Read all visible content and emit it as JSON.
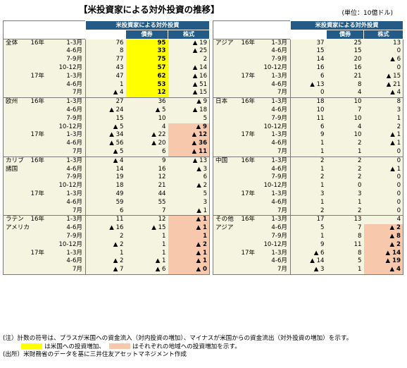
{
  "title": "【米投資家による対外投資の推移】",
  "unit": "(単位：10億ドル)",
  "header": {
    "main": "米投資家による対外投資",
    "bonds": "債券",
    "stocks": "株式"
  },
  "left_groups": [
    {
      "region": [
        "全体",
        ""
      ],
      "rows": [
        {
          "yr": "16年",
          "per": "1-3月",
          "total": "76",
          "bonds": "95",
          "stocks": "▲ 19",
          "hb": "y",
          "hs": ""
        },
        {
          "yr": "",
          "per": "4-6月",
          "total": "8",
          "bonds": "33",
          "stocks": "▲ 25",
          "hb": "y",
          "hs": ""
        },
        {
          "yr": "",
          "per": "7-9月",
          "total": "77",
          "bonds": "75",
          "stocks": "2",
          "hb": "y",
          "hs": ""
        },
        {
          "yr": "",
          "per": "10-12月",
          "total": "43",
          "bonds": "57",
          "stocks": "▲ 14",
          "hb": "y",
          "hs": ""
        },
        {
          "yr": "17年",
          "per": "1-3月",
          "total": "47",
          "bonds": "62",
          "stocks": "▲ 16",
          "hb": "y",
          "hs": ""
        },
        {
          "yr": "",
          "per": "4-6月",
          "total": "1",
          "bonds": "53",
          "stocks": "▲ 51",
          "hb": "y",
          "hs": ""
        },
        {
          "yr": "",
          "per": "7月",
          "total": "▲ 4",
          "bonds": "12",
          "stocks": "▲ 15",
          "hb": "y",
          "hs": ""
        }
      ]
    },
    {
      "region": [
        "欧州",
        ""
      ],
      "rows": [
        {
          "yr": "16年",
          "per": "1-3月",
          "total": "27",
          "bonds": "36",
          "stocks": "▲ 9",
          "hb": "",
          "hs": ""
        },
        {
          "yr": "",
          "per": "4-6月",
          "total": "▲ 24",
          "bonds": "▲ 5",
          "stocks": "▲ 18",
          "hb": "",
          "hs": ""
        },
        {
          "yr": "",
          "per": "7-9月",
          "total": "15",
          "bonds": "10",
          "stocks": "5",
          "hb": "",
          "hs": ""
        },
        {
          "yr": "",
          "per": "10-12月",
          "total": "▲ 5",
          "bonds": "4",
          "stocks": "▲ 9",
          "hb": "",
          "hs": "o"
        },
        {
          "yr": "17年",
          "per": "1-3月",
          "total": "▲ 34",
          "bonds": "▲ 22",
          "stocks": "▲ 12",
          "hb": "",
          "hs": "o"
        },
        {
          "yr": "",
          "per": "4-6月",
          "total": "▲ 56",
          "bonds": "▲ 20",
          "stocks": "▲ 36",
          "hb": "",
          "hs": "o"
        },
        {
          "yr": "",
          "per": "7月",
          "total": "▲ 5",
          "bonds": "6",
          "stocks": "▲ 11",
          "hb": "",
          "hs": "o"
        }
      ]
    },
    {
      "region": [
        "カリブ",
        "諸国"
      ],
      "rows": [
        {
          "yr": "16年",
          "per": "1-3月",
          "total": "▲ 4",
          "bonds": "9",
          "stocks": "▲ 13",
          "hb": "",
          "hs": ""
        },
        {
          "yr": "",
          "per": "4-6月",
          "total": "14",
          "bonds": "16",
          "stocks": "▲ 3",
          "hb": "",
          "hs": ""
        },
        {
          "yr": "",
          "per": "7-9月",
          "total": "19",
          "bonds": "12",
          "stocks": "6",
          "hb": "",
          "hs": ""
        },
        {
          "yr": "",
          "per": "10-12月",
          "total": "18",
          "bonds": "21",
          "stocks": "▲ 2",
          "hb": "",
          "hs": ""
        },
        {
          "yr": "17年",
          "per": "1-3月",
          "total": "49",
          "bonds": "44",
          "stocks": "5",
          "hb": "",
          "hs": ""
        },
        {
          "yr": "",
          "per": "4-6月",
          "total": "59",
          "bonds": "55",
          "stocks": "3",
          "hb": "",
          "hs": ""
        },
        {
          "yr": "",
          "per": "7月",
          "total": "6",
          "bonds": "7",
          "stocks": "▲ 1",
          "hb": "",
          "hs": ""
        }
      ]
    },
    {
      "region": [
        "ラテン",
        "アメリカ"
      ],
      "rows": [
        {
          "yr": "16年",
          "per": "1-3月",
          "total": "11",
          "bonds": "12",
          "stocks": "▲ 1",
          "hb": "",
          "hs": "o"
        },
        {
          "yr": "",
          "per": "4-6月",
          "total": "▲ 16",
          "bonds": "▲ 15",
          "stocks": "▲ 1",
          "hb": "",
          "hs": "o"
        },
        {
          "yr": "",
          "per": "7-9月",
          "total": "2",
          "bonds": "1",
          "stocks": "1",
          "hb": "",
          "hs": "o"
        },
        {
          "yr": "",
          "per": "10-12月",
          "total": "▲ 2",
          "bonds": "1",
          "stocks": "▲ 2",
          "hb": "",
          "hs": "o"
        },
        {
          "yr": "17年",
          "per": "1-3月",
          "total": "1",
          "bonds": "1",
          "stocks": "▲ 1",
          "hb": "",
          "hs": "o"
        },
        {
          "yr": "",
          "per": "4-6月",
          "total": "▲ 2",
          "bonds": "▲ 1",
          "stocks": "▲ 1",
          "hb": "",
          "hs": "o"
        },
        {
          "yr": "",
          "per": "7月",
          "total": "▲ 7",
          "bonds": "▲ 6",
          "stocks": "▲ 0",
          "hb": "",
          "hs": "o"
        }
      ]
    }
  ],
  "right_groups": [
    {
      "region": [
        "アジア",
        ""
      ],
      "rows": [
        {
          "yr": "16年",
          "per": "1-3月",
          "total": "37",
          "bonds": "25",
          "stocks": "13",
          "hb": "",
          "hs": ""
        },
        {
          "yr": "",
          "per": "4-6月",
          "total": "15",
          "bonds": "15",
          "stocks": "0",
          "hb": "",
          "hs": ""
        },
        {
          "yr": "",
          "per": "7-9月",
          "total": "14",
          "bonds": "20",
          "stocks": "▲ 6",
          "hb": "",
          "hs": ""
        },
        {
          "yr": "",
          "per": "10-12月",
          "total": "16",
          "bonds": "16",
          "stocks": "0",
          "hb": "",
          "hs": ""
        },
        {
          "yr": "17年",
          "per": "1-3月",
          "total": "6",
          "bonds": "21",
          "stocks": "▲ 15",
          "hb": "",
          "hs": ""
        },
        {
          "yr": "",
          "per": "4-6月",
          "total": "▲ 13",
          "bonds": "8",
          "stocks": "▲ 21",
          "hb": "",
          "hs": ""
        },
        {
          "yr": "",
          "per": "7月",
          "total": "0",
          "bonds": "4",
          "stocks": "▲ 4",
          "hb": "",
          "hs": ""
        }
      ]
    },
    {
      "region": [
        "日本",
        ""
      ],
      "rows": [
        {
          "yr": "16年",
          "per": "1-3月",
          "total": "18",
          "bonds": "10",
          "stocks": "8",
          "hb": "",
          "hs": ""
        },
        {
          "yr": "",
          "per": "4-6月",
          "total": "10",
          "bonds": "7",
          "stocks": "3",
          "hb": "",
          "hs": ""
        },
        {
          "yr": "",
          "per": "7-9月",
          "total": "11",
          "bonds": "10",
          "stocks": "1",
          "hb": "",
          "hs": ""
        },
        {
          "yr": "",
          "per": "10-12月",
          "total": "6",
          "bonds": "4",
          "stocks": "2",
          "hb": "",
          "hs": ""
        },
        {
          "yr": "17年",
          "per": "1-3月",
          "total": "9",
          "bonds": "10",
          "stocks": "▲ 1",
          "hb": "",
          "hs": ""
        },
        {
          "yr": "",
          "per": "4-6月",
          "total": "1",
          "bonds": "2",
          "stocks": "▲ 1",
          "hb": "",
          "hs": ""
        },
        {
          "yr": "",
          "per": "7月",
          "total": "1",
          "bonds": "1",
          "stocks": "0",
          "hb": "",
          "hs": ""
        }
      ]
    },
    {
      "region": [
        "中国",
        ""
      ],
      "rows": [
        {
          "yr": "16年",
          "per": "1-3月",
          "total": "2",
          "bonds": "2",
          "stocks": "0",
          "hb": "",
          "hs": ""
        },
        {
          "yr": "",
          "per": "4-6月",
          "total": "1",
          "bonds": "2",
          "stocks": "▲ 1",
          "hb": "",
          "hs": ""
        },
        {
          "yr": "",
          "per": "7-9月",
          "total": "2",
          "bonds": "2",
          "stocks": "0",
          "hb": "",
          "hs": ""
        },
        {
          "yr": "",
          "per": "10-12月",
          "total": "1",
          "bonds": "0",
          "stocks": "0",
          "hb": "",
          "hs": ""
        },
        {
          "yr": "17年",
          "per": "1-3月",
          "total": "3",
          "bonds": "3",
          "stocks": "0",
          "hb": "",
          "hs": ""
        },
        {
          "yr": "",
          "per": "4-6月",
          "total": "1",
          "bonds": "1",
          "stocks": "0",
          "hb": "",
          "hs": ""
        },
        {
          "yr": "",
          "per": "7月",
          "total": "2",
          "bonds": "2",
          "stocks": "0",
          "hb": "",
          "hs": ""
        }
      ]
    },
    {
      "region": [
        "その他",
        "アジア"
      ],
      "rows": [
        {
          "yr": "16年",
          "per": "1-3月",
          "total": "17",
          "bonds": "13",
          "stocks": "4",
          "hb": "",
          "hs": ""
        },
        {
          "yr": "",
          "per": "4-6月",
          "total": "5",
          "bonds": "7",
          "stocks": "▲ 2",
          "hb": "",
          "hs": "o"
        },
        {
          "yr": "",
          "per": "7-9月",
          "total": "1",
          "bonds": "8",
          "stocks": "▲ 8",
          "hb": "",
          "hs": "o"
        },
        {
          "yr": "",
          "per": "10-12月",
          "total": "9",
          "bonds": "11",
          "stocks": "▲ 2",
          "hb": "",
          "hs": "o"
        },
        {
          "yr": "17年",
          "per": "1-3月",
          "total": "▲ 6",
          "bonds": "8",
          "stocks": "▲ 14",
          "hb": "",
          "hs": "o"
        },
        {
          "yr": "",
          "per": "4-6月",
          "total": "▲ 14",
          "bonds": "5",
          "stocks": "▲ 19",
          "hb": "",
          "hs": "o"
        },
        {
          "yr": "",
          "per": "7月",
          "total": "▲ 3",
          "bonds": "1",
          "stocks": "▲ 4",
          "hb": "",
          "hs": "o"
        }
      ]
    }
  ],
  "notes": {
    "line1": "(注）計数の符号は、プラスが米国への資金流入（対内投資の増加）、マイナスが米国からの資金流出（対外投資の増加）を示す。",
    "legend_yellow": "は米国への投資増加、",
    "legend_orange": "はそれぞれの地域への投資増加を示す。",
    "source": "(出所）米財務省のデータを基に三井住友アセットマネジメント作成"
  },
  "colors": {
    "header_bg": "#235a86",
    "cell_bg": "#f4f4e0",
    "yellow": "#ffff00",
    "orange": "#f8c8ad"
  }
}
